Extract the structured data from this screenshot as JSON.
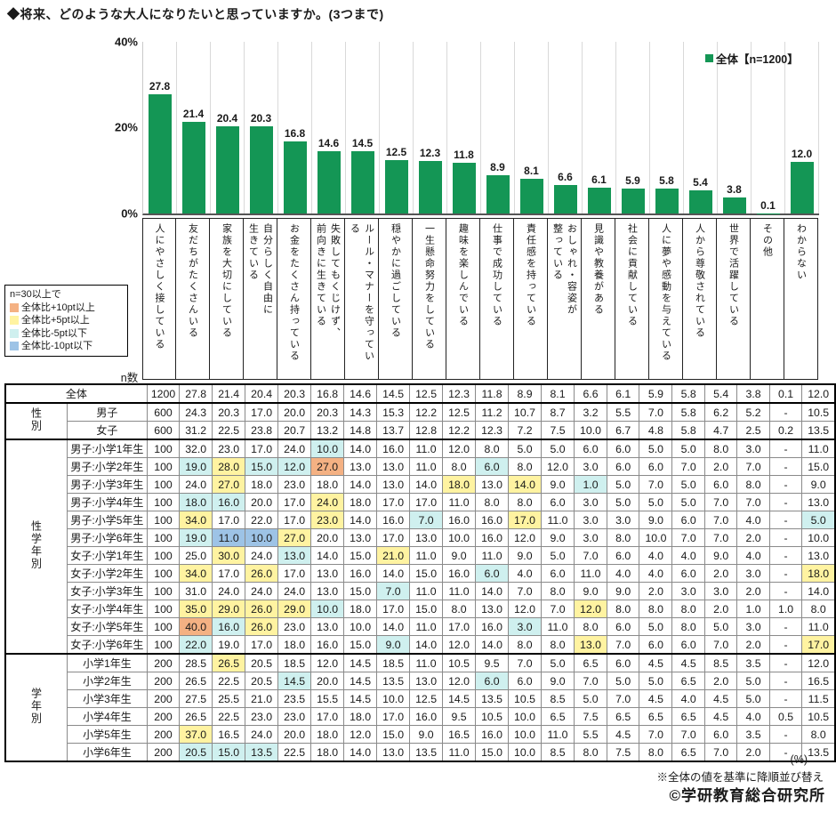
{
  "title": "◆将来、どのような大人になりたいと思っていますか。(3つまで)",
  "legend": {
    "label": "全体【n=1200】"
  },
  "axis": {
    "ticks": [
      "40%",
      "20%",
      "0%"
    ],
    "max_percent": 40
  },
  "colors": {
    "bar": "#149655",
    "plus10pt": "#F4B183",
    "plus5pt": "#FFF3A1",
    "minus5pt": "#CFF0EF",
    "minus10pt": "#9DC3E6"
  },
  "chart_data": {
    "type": "bar",
    "title": "将来、どのような大人になりたいと思っていますか。(3つまで)",
    "ylabel": "%",
    "ylim": [
      0,
      40
    ],
    "legend_position": "top-right",
    "series_name": "全体【n=1200】",
    "categories": [
      "人にやさしく接している",
      "友だちがたくさんいる",
      "家族を大切にしている",
      "自分らしく自由に\n生きている",
      "お金をたくさん持っている",
      "失敗してもくじけず、\n前向きに生きている",
      "ルール・マナーを守ってい\nる",
      "穏やかに過ごしている",
      "一生懸命努力をしている",
      "趣味を楽しんでいる",
      "仕事で成功している",
      "責任感を持っている",
      "おしゃれ・容姿が\n整っている",
      "見識や教養がある",
      "社会に貢献している",
      "人に夢や感動を与えている",
      "人から尊敬されている",
      "世界で活躍している",
      "その他",
      "わからない"
    ],
    "values": [
      27.8,
      21.4,
      20.4,
      20.3,
      16.8,
      14.6,
      14.5,
      12.5,
      12.3,
      11.8,
      8.9,
      8.1,
      6.6,
      6.1,
      5.9,
      5.8,
      5.4,
      3.8,
      0.1,
      12.0
    ]
  },
  "diff_legend": {
    "title": "n=30以上で",
    "items": [
      {
        "label": "全体比+10pt以上",
        "color": "#F4B183",
        "code": "o"
      },
      {
        "label": "全体比+5pt以上",
        "color": "#FFF3A1",
        "code": "y"
      },
      {
        "label": "全体比-5pt以下",
        "color": "#CFF0EF",
        "code": "c"
      },
      {
        "label": "全体比-10pt以下",
        "color": "#9DC3E6",
        "code": "b"
      }
    ]
  },
  "table": {
    "n_header": "n数",
    "unit_note": "(%)",
    "sort_note": "※全体の値を基準に降順並び替え",
    "copyright": "©学研教育総合研究所",
    "groups": [
      {
        "group_label": "",
        "rows": [
          {
            "label": "全体",
            "n": "1200",
            "values": [
              "27.8",
              "21.4",
              "20.4",
              "20.3",
              "16.8",
              "14.6",
              "14.5",
              "12.5",
              "12.3",
              "11.8",
              "8.9",
              "8.1",
              "6.6",
              "6.1",
              "5.9",
              "5.8",
              "5.4",
              "3.8",
              "0.1",
              "12.0"
            ],
            "marks": {}
          }
        ]
      },
      {
        "group_label": "性別",
        "rows": [
          {
            "label": "男子",
            "n": "600",
            "values": [
              "24.3",
              "20.3",
              "17.0",
              "20.0",
              "20.3",
              "14.3",
              "15.3",
              "12.2",
              "12.5",
              "11.2",
              "10.7",
              "8.7",
              "3.2",
              "5.5",
              "7.0",
              "5.8",
              "6.2",
              "5.2",
              "-",
              "10.5"
            ],
            "marks": {}
          },
          {
            "label": "女子",
            "n": "600",
            "values": [
              "31.2",
              "22.5",
              "23.8",
              "20.7",
              "13.2",
              "14.8",
              "13.7",
              "12.8",
              "12.2",
              "12.3",
              "7.2",
              "7.5",
              "10.0",
              "6.7",
              "4.8",
              "5.8",
              "4.7",
              "2.5",
              "0.2",
              "13.5"
            ],
            "marks": {}
          }
        ]
      },
      {
        "group_label": "性学年別",
        "rows": [
          {
            "label": "男子:小学1年生",
            "n": "100",
            "values": [
              "32.0",
              "23.0",
              "17.0",
              "24.0",
              "10.0",
              "14.0",
              "16.0",
              "11.0",
              "12.0",
              "8.0",
              "5.0",
              "5.0",
              "6.0",
              "6.0",
              "5.0",
              "5.0",
              "8.0",
              "3.0",
              "-",
              "11.0"
            ],
            "marks": {
              "4": "c"
            }
          },
          {
            "label": "男子:小学2年生",
            "n": "100",
            "values": [
              "19.0",
              "28.0",
              "15.0",
              "12.0",
              "27.0",
              "13.0",
              "13.0",
              "11.0",
              "8.0",
              "6.0",
              "8.0",
              "12.0",
              "3.0",
              "6.0",
              "6.0",
              "7.0",
              "2.0",
              "7.0",
              "-",
              "15.0"
            ],
            "marks": {
              "0": "c",
              "1": "y",
              "2": "c",
              "3": "c",
              "4": "o",
              "9": "c"
            }
          },
          {
            "label": "男子:小学3年生",
            "n": "100",
            "values": [
              "24.0",
              "27.0",
              "18.0",
              "23.0",
              "18.0",
              "14.0",
              "13.0",
              "14.0",
              "18.0",
              "13.0",
              "14.0",
              "9.0",
              "1.0",
              "5.0",
              "7.0",
              "5.0",
              "6.0",
              "8.0",
              "-",
              "9.0"
            ],
            "marks": {
              "1": "y",
              "8": "y",
              "10": "y",
              "12": "c"
            }
          },
          {
            "label": "男子:小学4年生",
            "n": "100",
            "values": [
              "18.0",
              "16.0",
              "20.0",
              "17.0",
              "24.0",
              "18.0",
              "17.0",
              "17.0",
              "11.0",
              "8.0",
              "8.0",
              "6.0",
              "3.0",
              "5.0",
              "5.0",
              "5.0",
              "7.0",
              "7.0",
              "-",
              "13.0"
            ],
            "marks": {
              "0": "c",
              "1": "c",
              "4": "y"
            }
          },
          {
            "label": "男子:小学5年生",
            "n": "100",
            "values": [
              "34.0",
              "17.0",
              "22.0",
              "17.0",
              "23.0",
              "14.0",
              "16.0",
              "7.0",
              "16.0",
              "16.0",
              "17.0",
              "11.0",
              "3.0",
              "3.0",
              "9.0",
              "6.0",
              "7.0",
              "4.0",
              "-",
              "5.0"
            ],
            "marks": {
              "0": "y",
              "4": "y",
              "7": "c",
              "10": "y",
              "19": "c"
            }
          },
          {
            "label": "男子:小学6年生",
            "n": "100",
            "values": [
              "19.0",
              "11.0",
              "10.0",
              "27.0",
              "20.0",
              "13.0",
              "17.0",
              "13.0",
              "10.0",
              "16.0",
              "12.0",
              "9.0",
              "3.0",
              "8.0",
              "10.0",
              "7.0",
              "7.0",
              "2.0",
              "-",
              "10.0"
            ],
            "marks": {
              "0": "c",
              "1": "b",
              "2": "b",
              "3": "y"
            }
          },
          {
            "label": "女子:小学1年生",
            "n": "100",
            "values": [
              "25.0",
              "30.0",
              "24.0",
              "13.0",
              "14.0",
              "15.0",
              "21.0",
              "11.0",
              "9.0",
              "11.0",
              "9.0",
              "5.0",
              "7.0",
              "6.0",
              "4.0",
              "4.0",
              "9.0",
              "4.0",
              "-",
              "13.0"
            ],
            "marks": {
              "1": "y",
              "3": "c",
              "6": "y"
            }
          },
          {
            "label": "女子:小学2年生",
            "n": "100",
            "values": [
              "34.0",
              "17.0",
              "26.0",
              "17.0",
              "13.0",
              "16.0",
              "14.0",
              "15.0",
              "16.0",
              "6.0",
              "4.0",
              "6.0",
              "11.0",
              "4.0",
              "4.0",
              "6.0",
              "2.0",
              "3.0",
              "-",
              "18.0"
            ],
            "marks": {
              "0": "y",
              "2": "y",
              "9": "c",
              "19": "y"
            }
          },
          {
            "label": "女子:小学3年生",
            "n": "100",
            "values": [
              "31.0",
              "24.0",
              "24.0",
              "24.0",
              "13.0",
              "15.0",
              "7.0",
              "11.0",
              "11.0",
              "14.0",
              "7.0",
              "8.0",
              "9.0",
              "9.0",
              "2.0",
              "3.0",
              "3.0",
              "2.0",
              "-",
              "14.0"
            ],
            "marks": {
              "6": "c"
            }
          },
          {
            "label": "女子:小学4年生",
            "n": "100",
            "values": [
              "35.0",
              "29.0",
              "26.0",
              "29.0",
              "10.0",
              "18.0",
              "17.0",
              "15.0",
              "8.0",
              "13.0",
              "12.0",
              "7.0",
              "12.0",
              "8.0",
              "8.0",
              "8.0",
              "2.0",
              "1.0",
              "1.0",
              "8.0"
            ],
            "marks": {
              "0": "y",
              "1": "y",
              "2": "y",
              "3": "y",
              "4": "c",
              "12": "y"
            }
          },
          {
            "label": "女子:小学5年生",
            "n": "100",
            "values": [
              "40.0",
              "16.0",
              "26.0",
              "23.0",
              "13.0",
              "10.0",
              "14.0",
              "11.0",
              "17.0",
              "16.0",
              "3.0",
              "11.0",
              "8.0",
              "6.0",
              "5.0",
              "8.0",
              "5.0",
              "3.0",
              "-",
              "11.0"
            ],
            "marks": {
              "0": "o",
              "1": "c",
              "2": "y",
              "10": "c"
            }
          },
          {
            "label": "女子:小学6年生",
            "n": "100",
            "values": [
              "22.0",
              "19.0",
              "17.0",
              "18.0",
              "16.0",
              "15.0",
              "9.0",
              "14.0",
              "12.0",
              "14.0",
              "8.0",
              "8.0",
              "13.0",
              "7.0",
              "6.0",
              "6.0",
              "7.0",
              "2.0",
              "-",
              "17.0"
            ],
            "marks": {
              "0": "c",
              "6": "c",
              "12": "y",
              "19": "y"
            }
          }
        ]
      },
      {
        "group_label": "学年別",
        "rows": [
          {
            "label": "小学1年生",
            "n": "200",
            "values": [
              "28.5",
              "26.5",
              "20.5",
              "18.5",
              "12.0",
              "14.5",
              "18.5",
              "11.0",
              "10.5",
              "9.5",
              "7.0",
              "5.0",
              "6.5",
              "6.0",
              "4.5",
              "4.5",
              "8.5",
              "3.5",
              "-",
              "12.0"
            ],
            "marks": {
              "1": "y"
            }
          },
          {
            "label": "小学2年生",
            "n": "200",
            "values": [
              "26.5",
              "22.5",
              "20.5",
              "14.5",
              "20.0",
              "14.5",
              "13.5",
              "13.0",
              "12.0",
              "6.0",
              "6.0",
              "9.0",
              "7.0",
              "5.0",
              "5.0",
              "6.5",
              "2.0",
              "5.0",
              "-",
              "16.5"
            ],
            "marks": {
              "3": "c",
              "9": "c"
            }
          },
          {
            "label": "小学3年生",
            "n": "200",
            "values": [
              "27.5",
              "25.5",
              "21.0",
              "23.5",
              "15.5",
              "14.5",
              "10.0",
              "12.5",
              "14.5",
              "13.5",
              "10.5",
              "8.5",
              "5.0",
              "7.0",
              "4.5",
              "4.0",
              "4.5",
              "5.0",
              "-",
              "11.5"
            ],
            "marks": {}
          },
          {
            "label": "小学4年生",
            "n": "200",
            "values": [
              "26.5",
              "22.5",
              "23.0",
              "23.0",
              "17.0",
              "18.0",
              "17.0",
              "16.0",
              "9.5",
              "10.5",
              "10.0",
              "6.5",
              "7.5",
              "6.5",
              "6.5",
              "6.5",
              "4.5",
              "4.0",
              "0.5",
              "10.5"
            ],
            "marks": {}
          },
          {
            "label": "小学5年生",
            "n": "200",
            "values": [
              "37.0",
              "16.5",
              "24.0",
              "20.0",
              "18.0",
              "12.0",
              "15.0",
              "9.0",
              "16.5",
              "16.0",
              "10.0",
              "11.0",
              "5.5",
              "4.5",
              "7.0",
              "7.0",
              "6.0",
              "3.5",
              "-",
              "8.0"
            ],
            "marks": {
              "0": "y"
            }
          },
          {
            "label": "小学6年生",
            "n": "200",
            "values": [
              "20.5",
              "15.0",
              "13.5",
              "22.5",
              "18.0",
              "14.0",
              "13.0",
              "13.5",
              "11.0",
              "15.0",
              "10.0",
              "8.5",
              "8.0",
              "7.5",
              "8.0",
              "6.5",
              "7.0",
              "2.0",
              "-",
              "13.5"
            ],
            "marks": {
              "0": "c",
              "1": "c",
              "2": "c"
            }
          }
        ]
      }
    ]
  }
}
